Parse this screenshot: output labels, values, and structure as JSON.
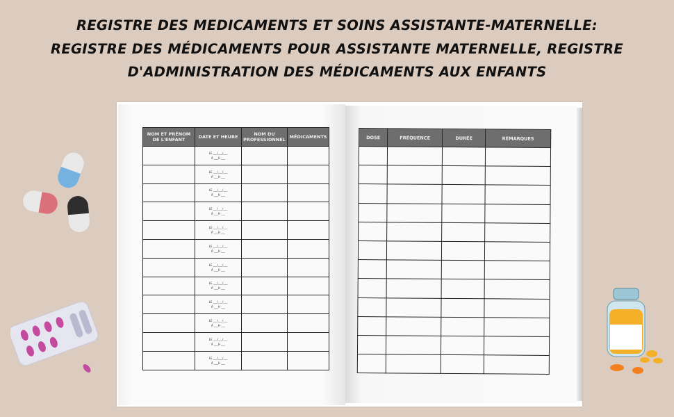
{
  "title_lines": [
    "REGISTRE DES MEDICAMENTS ET SOINS ASSISTANTE-MATERNELLE:",
    "REGISTRE DES MÉDICAMENTS POUR ASSISTANTE MATERNELLE, REGISTRE",
    "D'ADMINISTRATION DES MÉDICAMENTS AUX ENFANTS"
  ],
  "left_table": {
    "headers": [
      "NOM ET PRÉNOM DE L'ENFANT",
      "DATE ET HEURE",
      "NOM DU PROFESSIONNEL",
      "MÉDICAMENTS"
    ],
    "rows": [
      {
        "date": "LE ___/___/___",
        "time": "À ___H ___"
      },
      {
        "date": "LE ___/___/___",
        "time": "À ___H ___"
      },
      {
        "date": "LE ___/___/___",
        "time": "À ___H ___"
      },
      {
        "date": "LE ___/___/___",
        "time": "À ___H ___"
      },
      {
        "date": "LE ___/___/___",
        "time": "À ___H ___"
      },
      {
        "date": "LE ___/___/___",
        "time": "À ___H ___"
      },
      {
        "date": "LE ___/___/___",
        "time": "À ___H ___"
      },
      {
        "date": "LE ___/___/___",
        "time": "À ___H ___"
      },
      {
        "date": "LE ___/___/___",
        "time": "À ___H ___"
      },
      {
        "date": "LE ___/___/___",
        "time": "À ___H ___"
      },
      {
        "date": "LE ___/___/___",
        "time": "À ___H ___"
      },
      {
        "date": "LE ___/___/___",
        "time": "À ___H ___"
      }
    ]
  },
  "right_table": {
    "headers": [
      "DOSE",
      "FRÉQUENCE",
      "DURÉE",
      "REMARQUES"
    ],
    "rows": [
      {},
      {},
      {},
      {},
      {},
      {},
      {},
      {},
      {},
      {},
      {},
      {}
    ]
  },
  "colors": {
    "background": "#dccbbf",
    "header_fill": "#6e6e6e",
    "pill_red": "#d9707a",
    "pill_blue": "#75b2df",
    "pill_black": "#2d2d2d",
    "tablets": "#f5b02a"
  },
  "icons": [
    "capsule-icon",
    "pill-blister-icon",
    "pill-bottle-icon"
  ]
}
